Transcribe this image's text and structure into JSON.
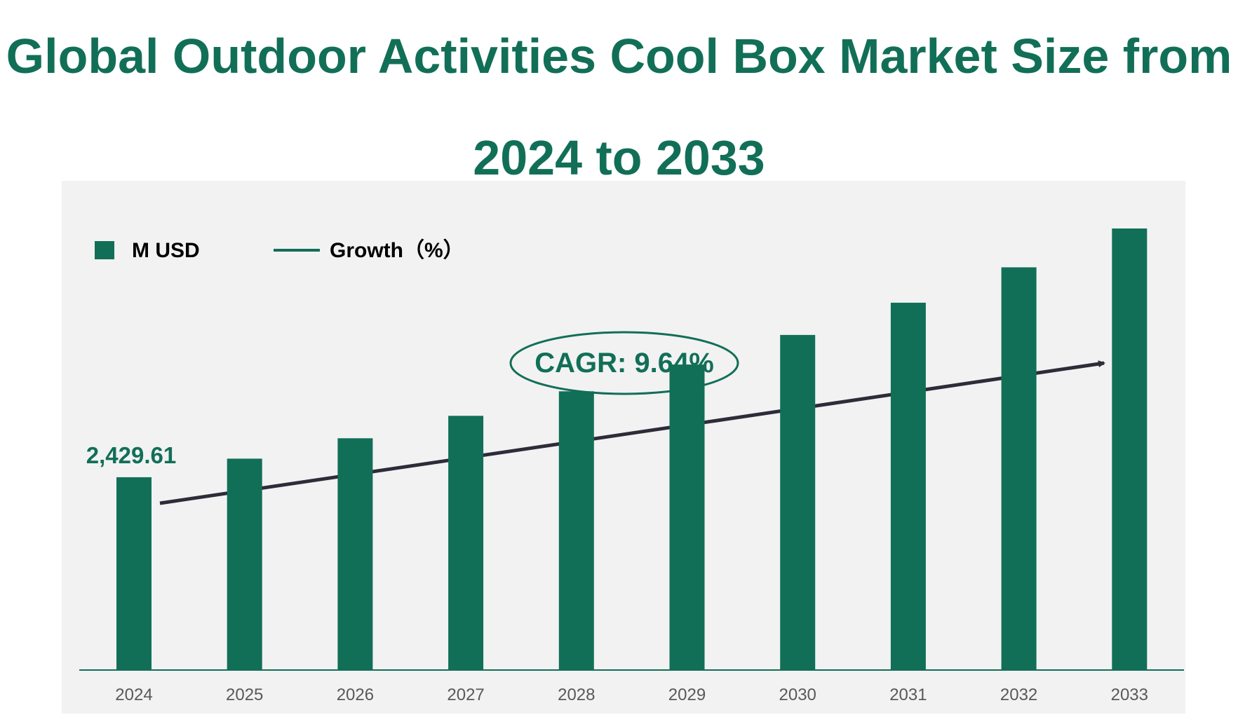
{
  "title_line1": "Global Outdoor Activities Cool Box Market Size from",
  "title_line2": "2024 to 2033",
  "legend": {
    "bar_label": "M USD",
    "line_label": "Growth（%）"
  },
  "annotation": {
    "cagr_text": "CAGR: 9.64%"
  },
  "colors": {
    "bar": "#126f57",
    "title": "#126f57",
    "arrow": "#2e2b3a",
    "panel": "#f2f2f2",
    "axis_text": "#595959"
  },
  "chart_data": {
    "type": "bar",
    "title": "Global Outdoor Activities Cool Box Market Size from 2024 to 2033",
    "categories": [
      "2024",
      "2025",
      "2026",
      "2027",
      "2028",
      "2029",
      "2030",
      "2031",
      "2032",
      "2033"
    ],
    "series": [
      {
        "name": "M USD",
        "values": [
          2429.61,
          2664,
          2921,
          3203,
          3512,
          3850,
          4222,
          4629,
          5075,
          5564
        ]
      }
    ],
    "data_labels": [
      {
        "category": "2024",
        "text": "2,429.61"
      }
    ],
    "ylim": [
      0,
      6500
    ],
    "grid": false,
    "legend_position": "top-left",
    "xlabel": "",
    "ylabel": ""
  }
}
